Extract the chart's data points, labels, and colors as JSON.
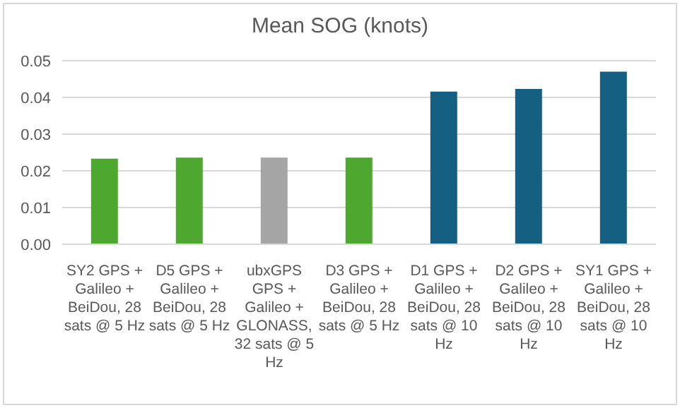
{
  "chart_data": {
    "type": "bar",
    "title": "Mean SOG (knots)",
    "categories": [
      "SY2 GPS + Galileo + BeiDou, 28 sats @ 5 Hz",
      "D5 GPS + Galileo + BeiDou, 28 sats @ 5 Hz",
      "ubxGPS GPS + Galileo + GLONASS, 32 sats @ 5 Hz",
      "D3 GPS + Galileo + BeiDou, 28 sats @ 5 Hz",
      "D1 GPS + Galileo + BeiDou, 28 sats @ 10 Hz",
      "D2 GPS + Galileo + BeiDou, 28 sats @ 10 Hz",
      "SY1 GPS + Galileo + BeiDou, 28 sats @ 10 Hz"
    ],
    "values": [
      0.0233,
      0.0236,
      0.0236,
      0.0236,
      0.0416,
      0.0423,
      0.047
    ],
    "colors": [
      "#4ea72e",
      "#4ea72e",
      "#a5a5a5",
      "#4ea72e",
      "#156082",
      "#156082",
      "#156082"
    ],
    "ylim": [
      0,
      0.05
    ],
    "yticks": [
      {
        "value": 0,
        "label": "0.00"
      },
      {
        "value": 0.01,
        "label": "0.01"
      },
      {
        "value": 0.02,
        "label": "0.02"
      },
      {
        "value": 0.03,
        "label": "0.03"
      },
      {
        "value": 0.04,
        "label": "0.04"
      },
      {
        "value": 0.05,
        "label": "0.05"
      }
    ],
    "grid": "y",
    "legend": false
  }
}
